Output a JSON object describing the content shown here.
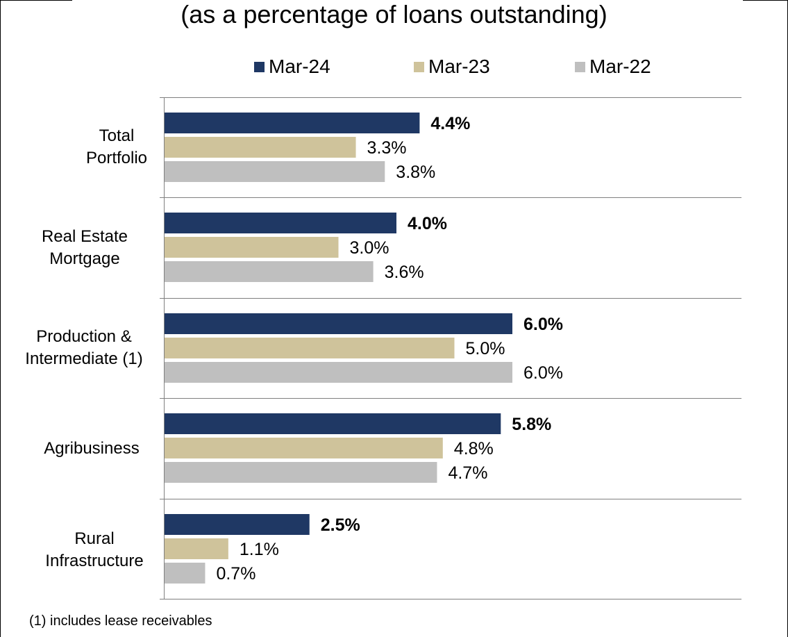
{
  "chart_data": {
    "type": "bar",
    "orientation": "horizontal",
    "subtitle": "(as a percentage of loans outstanding)",
    "categories": [
      "Total Portfolio",
      "Real Estate Mortgage",
      "Production & Intermediate (1)",
      "Agribusiness",
      "Rural Infrastructure"
    ],
    "category_label_lines": [
      [
        "Total",
        "Portfolio"
      ],
      [
        "Real Estate",
        "Mortgage"
      ],
      [
        "Production &",
        "Intermediate (1)"
      ],
      [
        "Agribusiness"
      ],
      [
        "Rural",
        "Infrastructure"
      ]
    ],
    "series": [
      {
        "name": "Mar-24",
        "values": [
          4.4,
          4.0,
          6.0,
          5.8,
          2.5
        ],
        "labels": [
          "4.4%",
          "4.0%",
          "6.0%",
          "5.8%",
          "2.5%"
        ],
        "color": "#1f3864",
        "bold_labels": true
      },
      {
        "name": "Mar-23",
        "values": [
          3.3,
          3.0,
          5.0,
          4.8,
          1.1
        ],
        "labels": [
          "3.3%",
          "3.0%",
          "5.0%",
          "4.8%",
          "1.1%"
        ],
        "color": "#cfc39b",
        "bold_labels": false
      },
      {
        "name": "Mar-22",
        "values": [
          3.8,
          3.6,
          6.0,
          4.7,
          0.7
        ],
        "labels": [
          "3.8%",
          "3.6%",
          "6.0%",
          "4.7%",
          "0.7%"
        ],
        "color": "#bfbfbf",
        "bold_labels": false
      }
    ],
    "xlim": [
      0,
      10
    ],
    "legend_position": "top",
    "grid": "horizontal separators between categories"
  },
  "footnote": "(1) includes lease receivables",
  "colors": {
    "axis": "#7f7f7f",
    "frame": "#000000"
  }
}
